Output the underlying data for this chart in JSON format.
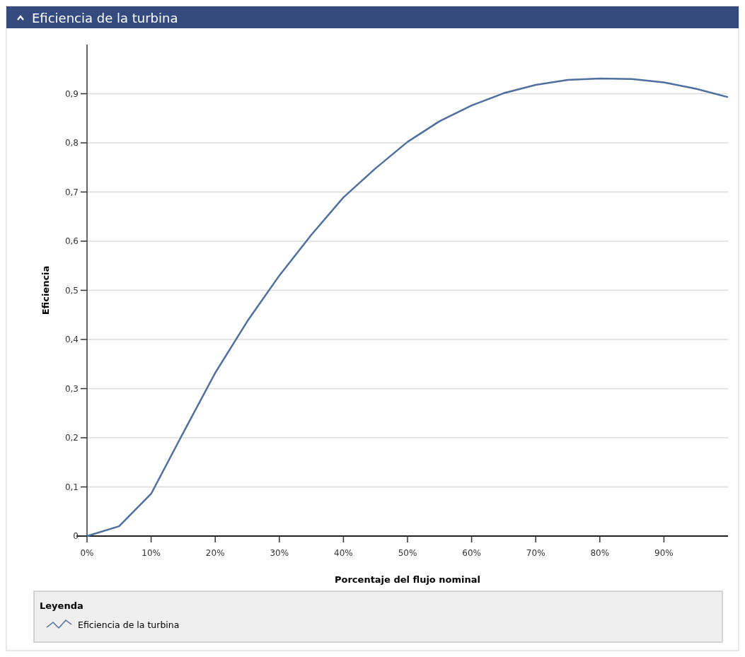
{
  "chart_data": {
    "type": "line",
    "title": "Eficiencia de la turbina",
    "xlabel": "Porcentaje del flujo nominal",
    "ylabel": "Eficiencia",
    "legend_title": "Leyenda",
    "x": [
      0,
      5,
      10,
      15,
      20,
      25,
      30,
      35,
      40,
      45,
      50,
      55,
      60,
      65,
      70,
      75,
      80,
      85,
      90,
      95,
      100
    ],
    "series": [
      {
        "name": "Eficiencia de la turbina",
        "color": "#4f6f9e",
        "values": [
          0,
          0.02,
          0.086,
          0.21,
          0.332,
          0.437,
          0.53,
          0.613,
          0.689,
          0.748,
          0.802,
          0.844,
          0.876,
          0.901,
          0.918,
          0.928,
          0.931,
          0.93,
          0.923,
          0.91,
          0.893
        ]
      }
    ],
    "xlim": [
      0,
      100
    ],
    "ylim": [
      0,
      1
    ],
    "xticks": [
      {
        "value": 0,
        "label": "0%"
      },
      {
        "value": 10,
        "label": "10%"
      },
      {
        "value": 20,
        "label": "20%"
      },
      {
        "value": 30,
        "label": "30%"
      },
      {
        "value": 40,
        "label": "40%"
      },
      {
        "value": 50,
        "label": "50%"
      },
      {
        "value": 60,
        "label": "60%"
      },
      {
        "value": 70,
        "label": "70%"
      },
      {
        "value": 80,
        "label": "80%"
      },
      {
        "value": 90,
        "label": "90%"
      }
    ],
    "yticks": [
      0,
      {
        "value": 0.1,
        "label": "0,1"
      },
      {
        "value": 0.2,
        "label": "0,2"
      },
      {
        "value": 0.3,
        "label": "0,3"
      },
      {
        "value": 0.4,
        "label": "0,4"
      },
      {
        "value": 0.5,
        "label": "0,5"
      },
      {
        "value": 0.6,
        "label": "0,6"
      },
      {
        "value": 0.7,
        "label": "0,7"
      },
      {
        "value": 0.8,
        "label": "0,8"
      },
      {
        "value": 0.9,
        "label": "0,9"
      }
    ],
    "grid": "y",
    "legend": "bottom",
    "marker": "none",
    "line_style": "solid"
  }
}
